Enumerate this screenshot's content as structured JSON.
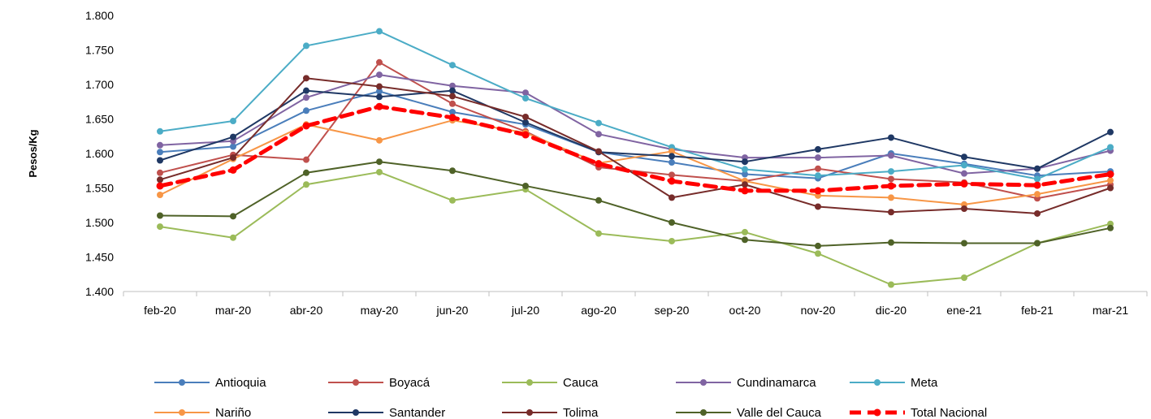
{
  "chart_data": {
    "type": "line",
    "title": "",
    "xlabel": "",
    "ylabel": "Pesos/Kg",
    "ylim": [
      1.4,
      1.8
    ],
    "yticks": [
      {
        "value": 1.4,
        "label": "1.400"
      },
      {
        "value": 1.45,
        "label": "1.450"
      },
      {
        "value": 1.5,
        "label": "1.500"
      },
      {
        "value": 1.55,
        "label": "1.550"
      },
      {
        "value": 1.6,
        "label": "1.600"
      },
      {
        "value": 1.65,
        "label": "1.650"
      },
      {
        "value": 1.7,
        "label": "1.700"
      },
      {
        "value": 1.75,
        "label": "1.750"
      },
      {
        "value": 1.8,
        "label": "1.800"
      }
    ],
    "grid": false,
    "legend_position": "bottom",
    "categories": [
      "feb-20",
      "mar-20",
      "abr-20",
      "may-20",
      "jun-20",
      "jul-20",
      "ago-20",
      "sep-20",
      "oct-20",
      "nov-20",
      "dic-20",
      "ene-21",
      "feb-21",
      "mar-21"
    ],
    "series": [
      {
        "name": "Antioquia",
        "color": "#4a7ebb",
        "style": "solid",
        "values": [
          1.602,
          1.61,
          1.662,
          1.69,
          1.66,
          1.642,
          1.602,
          1.587,
          1.57,
          1.564,
          1.6,
          1.585,
          1.568,
          1.574
        ]
      },
      {
        "name": "Boyacá",
        "color": "#c0504d",
        "style": "solid",
        "values": [
          1.572,
          1.598,
          1.591,
          1.732,
          1.672,
          1.632,
          1.58,
          1.569,
          1.56,
          1.578,
          1.563,
          1.558,
          1.535,
          1.555
        ]
      },
      {
        "name": "Cauca",
        "color": "#9bbb59",
        "style": "solid",
        "values": [
          1.494,
          1.478,
          1.555,
          1.573,
          1.532,
          1.548,
          1.484,
          1.473,
          1.486,
          1.455,
          1.41,
          1.42,
          1.47,
          1.498
        ]
      },
      {
        "name": "Cundinamarca",
        "color": "#8064a2",
        "style": "solid",
        "values": [
          1.612,
          1.618,
          1.681,
          1.714,
          1.698,
          1.688,
          1.628,
          1.606,
          1.594,
          1.594,
          1.597,
          1.571,
          1.578,
          1.604
        ]
      },
      {
        "name": "Meta",
        "color": "#4bacc6",
        "style": "solid",
        "values": [
          1.632,
          1.647,
          1.756,
          1.777,
          1.728,
          1.68,
          1.644,
          1.609,
          1.577,
          1.568,
          1.574,
          1.583,
          1.563,
          1.609
        ]
      },
      {
        "name": "Nariño",
        "color": "#f79646",
        "style": "solid",
        "values": [
          1.54,
          1.592,
          1.642,
          1.619,
          1.648,
          1.63,
          1.586,
          1.603,
          1.56,
          1.539,
          1.536,
          1.526,
          1.541,
          1.561
        ]
      },
      {
        "name": "Santander",
        "color": "#1f3864",
        "style": "solid",
        "values": [
          1.59,
          1.624,
          1.691,
          1.682,
          1.691,
          1.645,
          1.602,
          1.596,
          1.588,
          1.606,
          1.623,
          1.595,
          1.578,
          1.631
        ]
      },
      {
        "name": "Tolima",
        "color": "#772c2a",
        "style": "solid",
        "values": [
          1.562,
          1.594,
          1.709,
          1.697,
          1.683,
          1.653,
          1.603,
          1.536,
          1.555,
          1.523,
          1.515,
          1.52,
          1.513,
          1.55
        ]
      },
      {
        "name": "Valle del Cauca",
        "color": "#4f6228",
        "style": "solid",
        "values": [
          1.51,
          1.509,
          1.572,
          1.588,
          1.575,
          1.553,
          1.532,
          1.5,
          1.475,
          1.466,
          1.471,
          1.47,
          1.47,
          1.492
        ]
      },
      {
        "name": "Total Nacional",
        "color": "#ff0000",
        "style": "dashed",
        "values": [
          1.553,
          1.576,
          1.64,
          1.668,
          1.652,
          1.627,
          1.585,
          1.56,
          1.546,
          1.546,
          1.553,
          1.556,
          1.554,
          1.57
        ]
      }
    ]
  }
}
